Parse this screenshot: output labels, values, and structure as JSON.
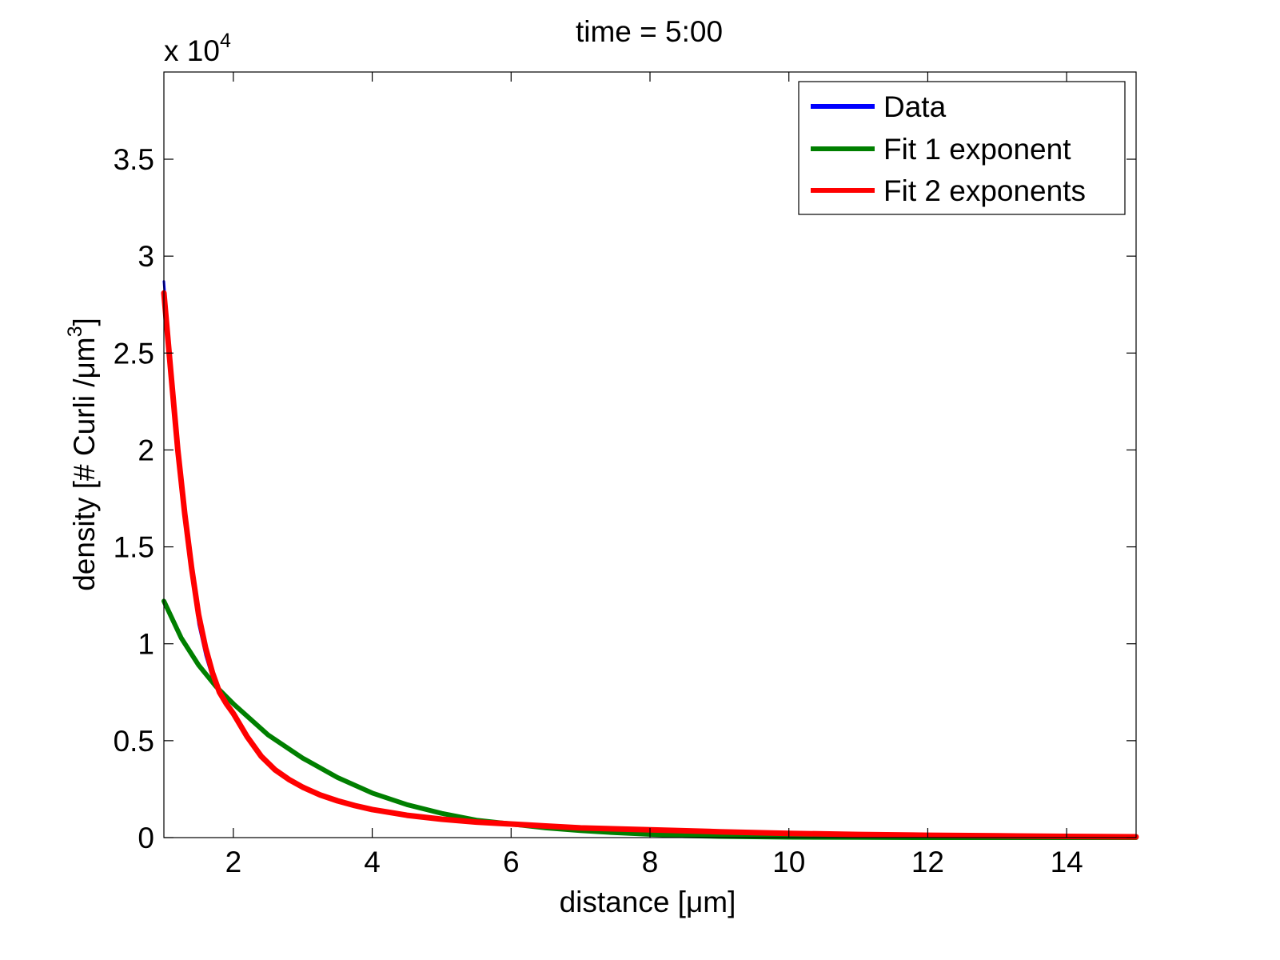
{
  "chart_data": {
    "type": "line",
    "title": "time = 5:00",
    "xlabel": "distance [μm]",
    "ylabel_parts": {
      "main": "density [# Curli /μm",
      "sup": "3",
      "close": "]"
    },
    "y_multiplier": {
      "base": "x 10",
      "exponent": "4"
    },
    "xlim": [
      1,
      15
    ],
    "ylim": [
      0,
      3.95
    ],
    "xticks": [
      2,
      4,
      6,
      8,
      10,
      12,
      14
    ],
    "xtick_labels": [
      "2",
      "4",
      "6",
      "8",
      "10",
      "12",
      "14"
    ],
    "yticks": [
      0,
      0.5,
      1,
      1.5,
      2,
      2.5,
      3,
      3.5
    ],
    "ytick_labels": [
      "0",
      "0.5",
      "1",
      "1.5",
      "2",
      "2.5",
      "3",
      "3.5"
    ],
    "grid": false,
    "legend_position": "top-right",
    "series": [
      {
        "name": "Data",
        "color": "#0000ff",
        "x": [
          1.0,
          1.1,
          1.2,
          1.3,
          1.4,
          1.5,
          1.6,
          1.7,
          1.8,
          1.9,
          2.0,
          2.2,
          2.4,
          2.6,
          2.8,
          3.0,
          3.25,
          3.5,
          3.75,
          4.0,
          4.5,
          5.0,
          5.5,
          6.0,
          6.5,
          7.0,
          8.0,
          9.0,
          10.0,
          11.0,
          12.0,
          13.0,
          14.0,
          15.0
        ],
        "y": [
          2.87,
          2.4,
          2.0,
          1.62,
          1.35,
          1.1,
          0.94,
          0.82,
          0.74,
          0.69,
          0.64,
          0.52,
          0.43,
          0.35,
          0.3,
          0.26,
          0.22,
          0.19,
          0.165,
          0.15,
          0.12,
          0.095,
          0.085,
          0.07,
          0.06,
          0.05,
          0.04,
          0.03,
          0.022,
          0.016,
          0.012,
          0.009,
          0.006,
          0.004
        ]
      },
      {
        "name": "Fit 1 exponent",
        "color": "#007f00",
        "x": [
          1.0,
          1.25,
          1.5,
          1.75,
          2.0,
          2.5,
          3.0,
          3.5,
          4.0,
          4.5,
          5.0,
          5.5,
          6.0,
          6.5,
          7.0,
          7.5,
          8.0,
          8.5,
          9.0,
          10.0,
          11.0,
          12.0,
          13.0,
          14.0,
          15.0
        ],
        "y": [
          1.22,
          1.03,
          0.89,
          0.78,
          0.69,
          0.53,
          0.41,
          0.31,
          0.23,
          0.17,
          0.125,
          0.09,
          0.07,
          0.05,
          0.036,
          0.025,
          0.017,
          0.01,
          0.006,
          0.002,
          0.001,
          0.0,
          0.0,
          0.0,
          0.0
        ]
      },
      {
        "name": "Fit 2 exponents",
        "color": "#ff0000",
        "x": [
          1.0,
          1.1,
          1.2,
          1.3,
          1.4,
          1.5,
          1.6,
          1.7,
          1.8,
          1.9,
          2.0,
          2.2,
          2.4,
          2.6,
          2.8,
          3.0,
          3.25,
          3.5,
          3.75,
          4.0,
          4.5,
          5.0,
          5.5,
          6.0,
          6.5,
          7.0,
          8.0,
          9.0,
          10.0,
          11.0,
          12.0,
          13.0,
          14.0,
          15.0
        ],
        "y": [
          2.81,
          2.4,
          2.0,
          1.67,
          1.39,
          1.15,
          0.98,
          0.85,
          0.75,
          0.69,
          0.64,
          0.52,
          0.42,
          0.35,
          0.3,
          0.26,
          0.22,
          0.19,
          0.165,
          0.145,
          0.115,
          0.095,
          0.08,
          0.07,
          0.06,
          0.05,
          0.04,
          0.03,
          0.022,
          0.016,
          0.012,
          0.009,
          0.006,
          0.004
        ]
      }
    ]
  }
}
